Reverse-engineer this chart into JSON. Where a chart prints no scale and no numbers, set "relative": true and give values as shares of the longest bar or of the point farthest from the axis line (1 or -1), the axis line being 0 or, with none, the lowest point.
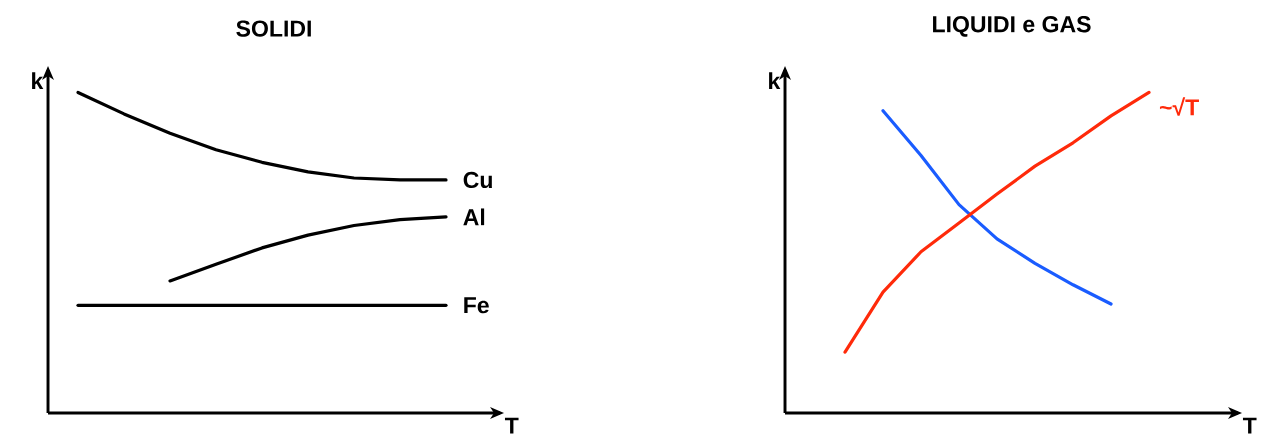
{
  "chart_data": [
    {
      "type": "line",
      "title": "SOLIDI",
      "xlabel": "T",
      "ylabel": "k",
      "relative": true,
      "categories": [
        null,
        null,
        null,
        null,
        null,
        null,
        null,
        null,
        null
      ],
      "series": [
        {
          "name": "Cu",
          "color": "#000000",
          "values": [
            1,
            0.933,
            0.873,
            0.821,
            0.782,
            0.752,
            0.733,
            0.727,
            0.727
          ]
        },
        {
          "name": "Al",
          "color": "#000000",
          "values": [
            null,
            null,
            0.412,
            0.464,
            0.515,
            0.555,
            0.585,
            0.603,
            0.612
          ]
        },
        {
          "name": "Fe",
          "color": "#000000",
          "values": [
            0.336,
            0.336,
            0.336,
            0.336,
            0.336,
            0.336,
            0.336,
            0.336,
            0.336
          ]
        }
      ]
    },
    {
      "type": "line",
      "title": "LIQUIDI e GAS",
      "xlabel": "T",
      "ylabel": "k",
      "relative": true,
      "categories": [
        null,
        null,
        null,
        null,
        null,
        null,
        null,
        null,
        null
      ],
      "series": [
        {
          "color": "#1a5cff",
          "values": [
            null,
            0.943,
            0.803,
            0.65,
            0.543,
            0.467,
            0.4,
            0.34,
            null
          ]
        },
        {
          "color": "#ff2a0a",
          "values": [
            0.19,
            0.377,
            0.503,
            0.593,
            0.683,
            0.77,
            0.843,
            0.927,
            1
          ]
        }
      ],
      "annotations": [
        "~√T"
      ]
    }
  ]
}
